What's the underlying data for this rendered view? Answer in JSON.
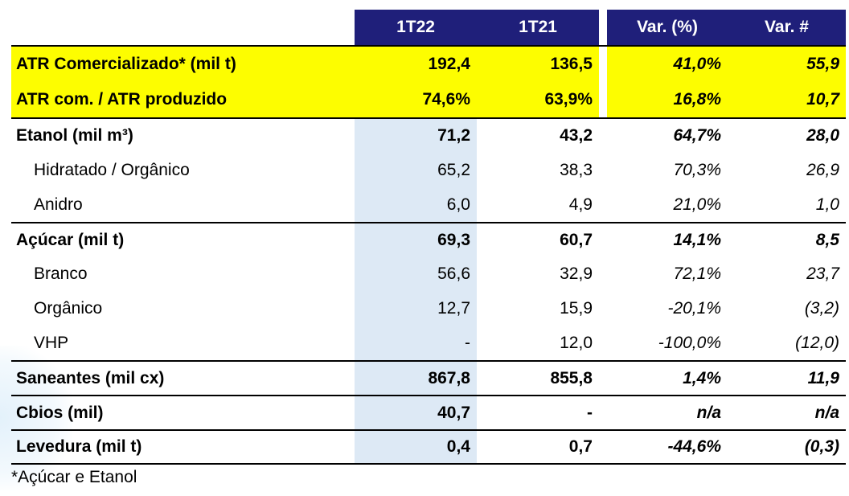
{
  "columns": [
    "1T22",
    "1T21",
    "Var. (%)",
    "Var. #"
  ],
  "rows": [
    {
      "label": "ATR Comercializado* (mil t)",
      "values": [
        "192,4",
        "136,5",
        "41,0%",
        "55,9"
      ],
      "style": "yellow"
    },
    {
      "label": "ATR com. / ATR produzido",
      "values": [
        "74,6%",
        "63,9%",
        "16,8%",
        "10,7"
      ],
      "style": "yellow"
    },
    {
      "label": "Etanol (mil m³)",
      "values": [
        "71,2",
        "43,2",
        "64,7%",
        "28,0"
      ],
      "style": "bold"
    },
    {
      "label": "Hidratado / Orgânico",
      "values": [
        "65,2",
        "38,3",
        "70,3%",
        "26,9"
      ],
      "style": "sub"
    },
    {
      "label": "Anidro",
      "values": [
        "6,0",
        "4,9",
        "21,0%",
        "1,0"
      ],
      "style": "sub"
    },
    {
      "label": "Açúcar (mil t)",
      "values": [
        "69,3",
        "60,7",
        "14,1%",
        "8,5"
      ],
      "style": "bold"
    },
    {
      "label": "Branco",
      "values": [
        "56,6",
        "32,9",
        "72,1%",
        "23,7"
      ],
      "style": "sub"
    },
    {
      "label": "Orgânico",
      "values": [
        "12,7",
        "15,9",
        "-20,1%",
        "(3,2)"
      ],
      "style": "sub"
    },
    {
      "label": "VHP",
      "values": [
        "-",
        "12,0",
        "-100,0%",
        "(12,0)"
      ],
      "style": "sub"
    },
    {
      "label": "Saneantes (mil cx)",
      "values": [
        "867,8",
        "855,8",
        "1,4%",
        "11,9"
      ],
      "style": "bold"
    },
    {
      "label": "Cbios (mil)",
      "values": [
        "40,7",
        "-",
        "n/a",
        "n/a"
      ],
      "style": "bold"
    },
    {
      "label": "Levedura (mil t)",
      "values": [
        "0,4",
        "0,7",
        "-44,6%",
        "(0,3)"
      ],
      "style": "bold"
    }
  ],
  "footnote": "*Açúcar e Etanol",
  "colors": {
    "header": "#1f1f7a",
    "highlight": "#fdfd00",
    "shade": "#dde9f5"
  }
}
